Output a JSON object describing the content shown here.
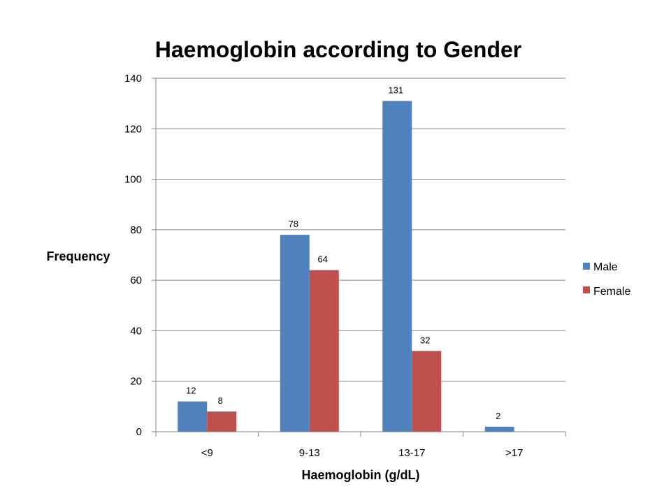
{
  "chart_data": {
    "type": "bar",
    "title": "Haemoglobin according to Gender",
    "xlabel": "Haemoglobin (g/dL)",
    "ylabel": "Frequency",
    "categories": [
      "<9",
      "9-13",
      "13-17",
      ">17"
    ],
    "series": [
      {
        "name": "Male",
        "values": [
          12,
          78,
          131,
          2
        ],
        "color": "#4F81BD"
      },
      {
        "name": "Female",
        "values": [
          8,
          64,
          32,
          null
        ],
        "color": "#C0504D"
      }
    ],
    "ylim": [
      0,
      140
    ],
    "yticks": [
      "0",
      "20",
      "40",
      "60",
      "80",
      "100",
      "120",
      "140"
    ],
    "grid": true,
    "legend_position": "right"
  }
}
